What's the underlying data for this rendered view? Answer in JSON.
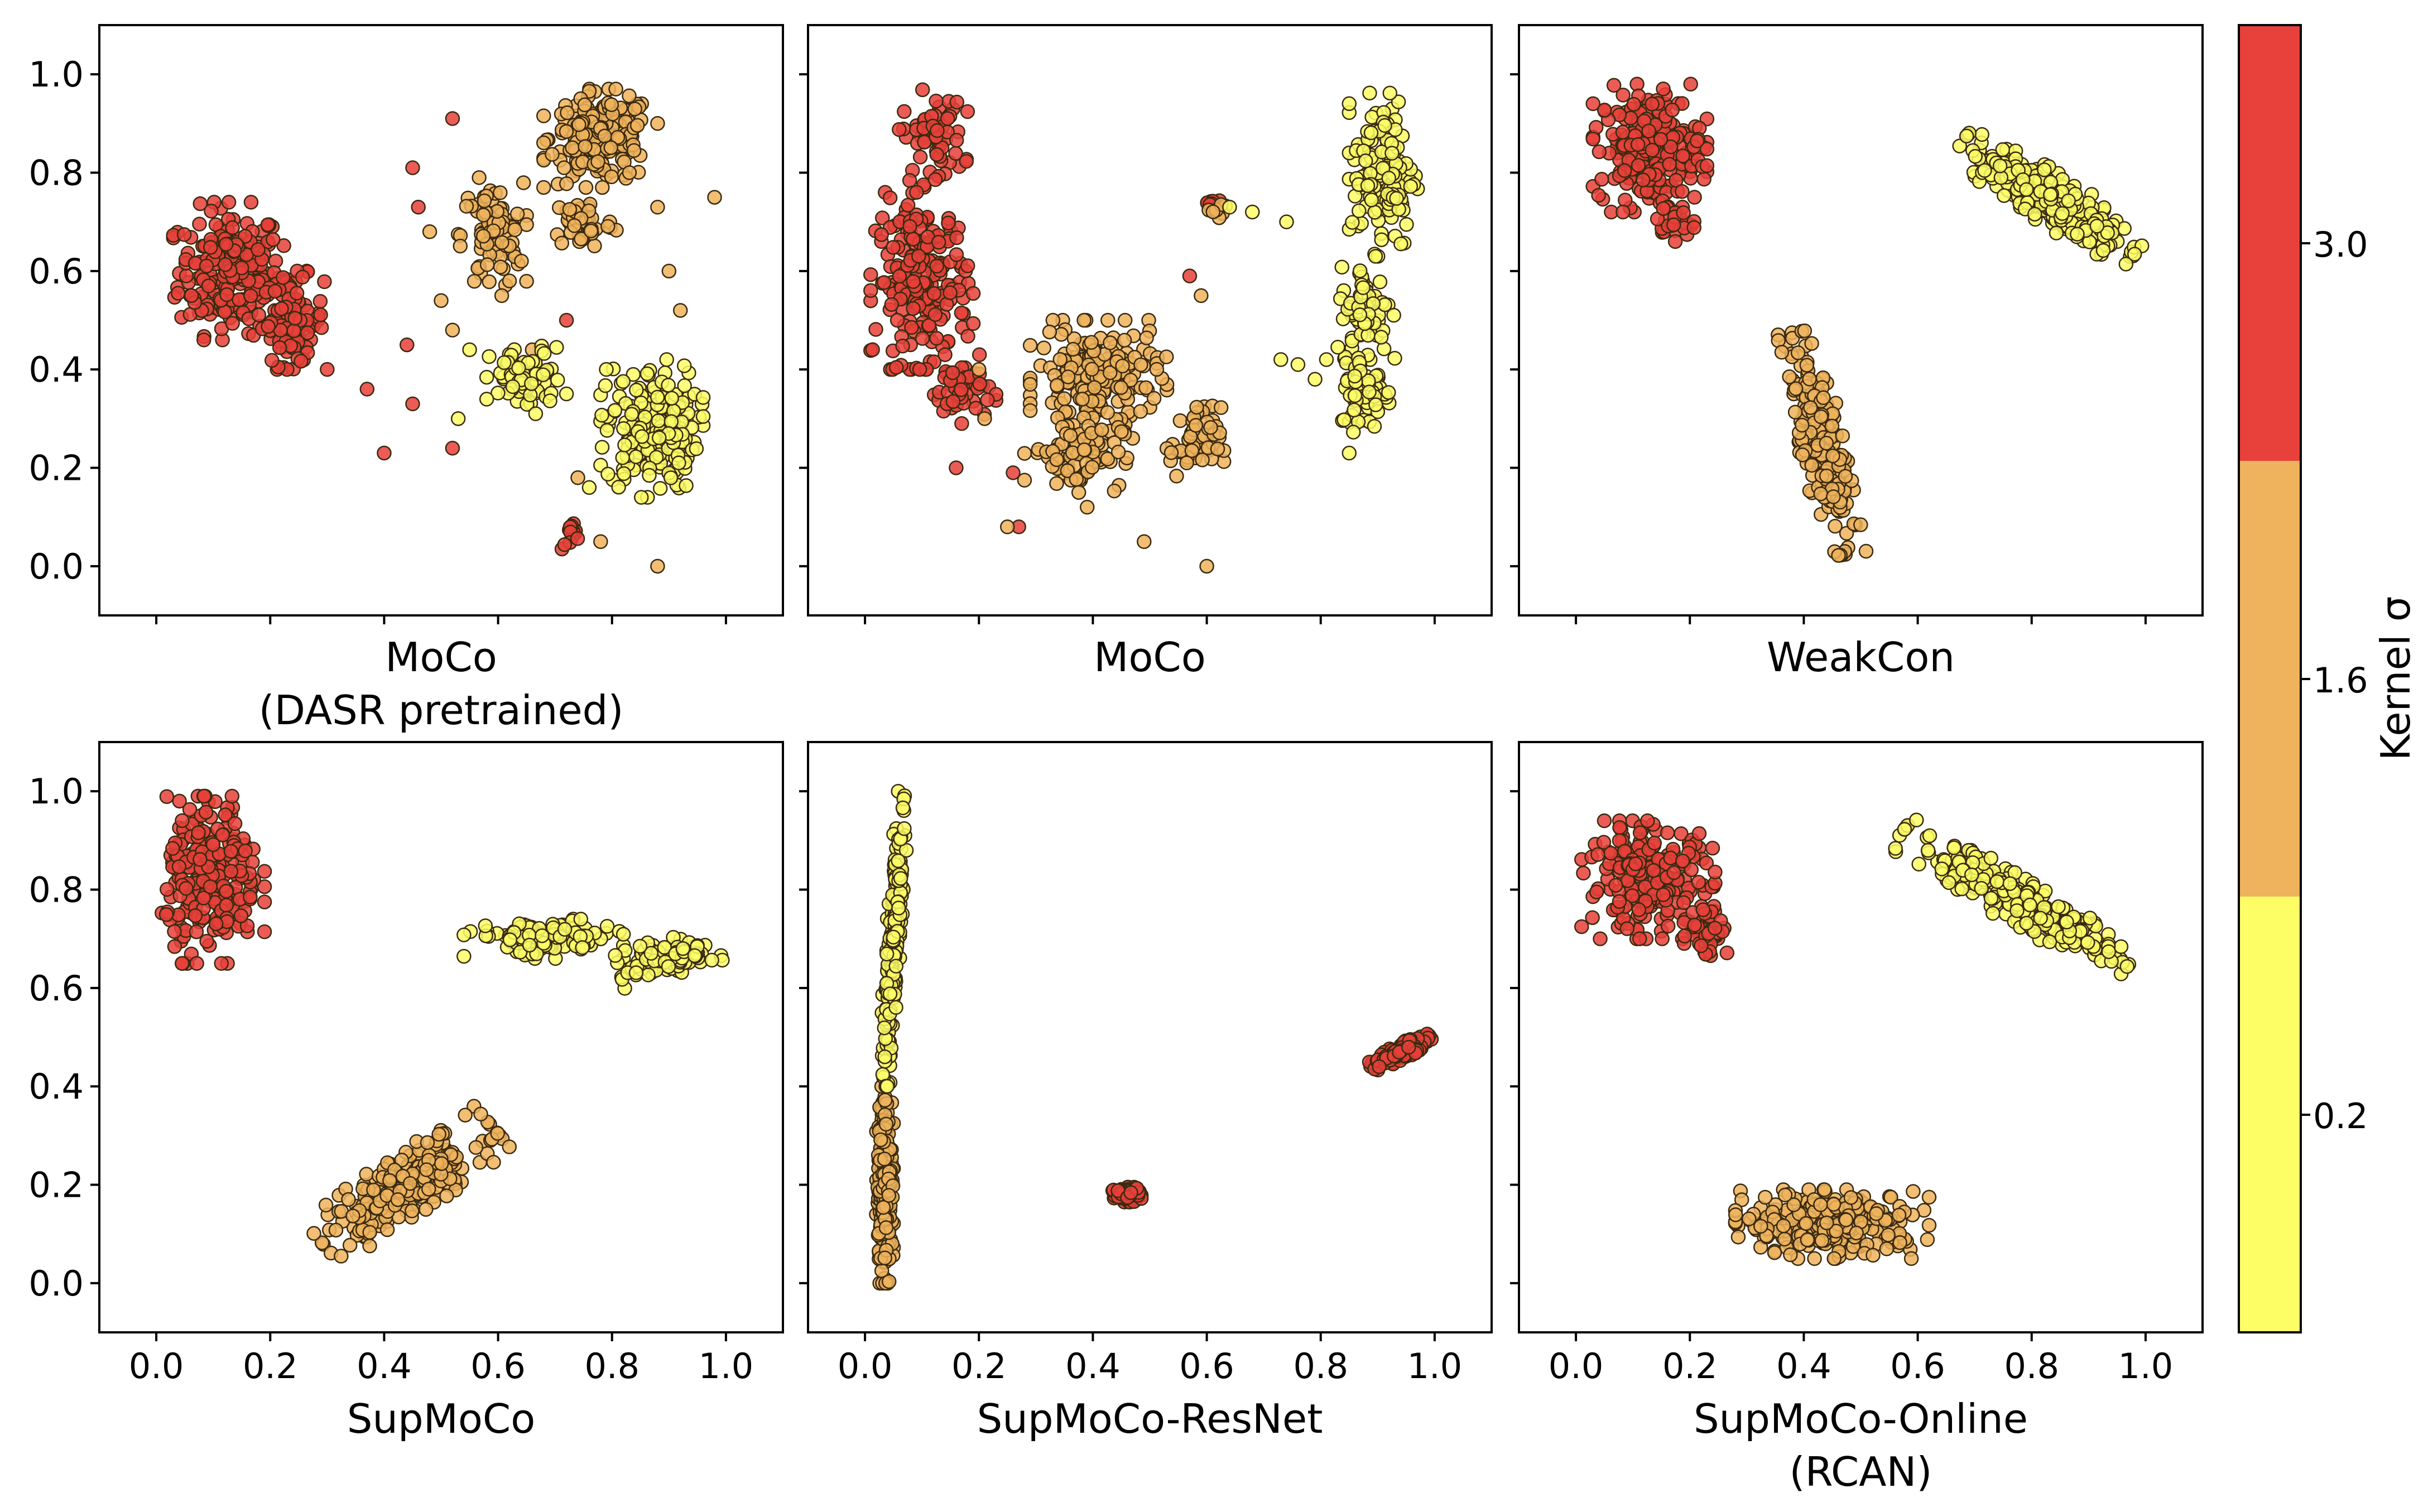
{
  "colors": {
    "red": "#e8403a",
    "orange": "#eeb35c",
    "yellow": "#fdfd66",
    "edge": "#3a2a10"
  },
  "colorbar": {
    "label": "Kernel σ",
    "ticks": [
      "0.2",
      "1.6",
      "3.0"
    ],
    "segments": [
      {
        "class": "0.2",
        "color": "#fdfd66"
      },
      {
        "class": "1.6",
        "color": "#eeb35c"
      },
      {
        "class": "3.0",
        "color": "#e8403a"
      }
    ]
  },
  "chart_data": [
    {
      "type": "scatter",
      "title": [
        "MoCo",
        "(DASR pretrained)"
      ],
      "xlim": [
        -0.1,
        1.1
      ],
      "ylim": [
        -0.1,
        1.1
      ],
      "xticks": [],
      "yticks": [
        "0.0",
        "0.2",
        "0.4",
        "0.6",
        "0.8",
        "1.0"
      ],
      "series": [
        {
          "class": "3.0",
          "clusters": [
            {
              "cx": 0.13,
              "cy": 0.6,
              "rx": 0.1,
              "ry": 0.14,
              "n": 230,
              "rot": 0
            },
            {
              "cx": 0.24,
              "cy": 0.5,
              "rx": 0.06,
              "ry": 0.1,
              "n": 90,
              "rot": 0
            },
            {
              "cx": 0.73,
              "cy": 0.06,
              "rx": 0.02,
              "ry": 0.03,
              "n": 14,
              "rot": 0
            }
          ],
          "points": [
            [
              0.37,
              0.36
            ],
            [
              0.4,
              0.23
            ],
            [
              0.45,
              0.33
            ],
            [
              0.52,
              0.24
            ],
            [
              0.44,
              0.45
            ],
            [
              0.46,
              0.73
            ],
            [
              0.52,
              0.91
            ],
            [
              0.72,
              0.5
            ],
            [
              0.45,
              0.81
            ]
          ]
        },
        {
          "class": "1.6",
          "clusters": [
            {
              "cx": 0.78,
              "cy": 0.87,
              "rx": 0.1,
              "ry": 0.1,
              "n": 190,
              "rot": 0
            },
            {
              "cx": 0.59,
              "cy": 0.67,
              "rx": 0.06,
              "ry": 0.12,
              "n": 80,
              "rot": 0
            },
            {
              "cx": 0.75,
              "cy": 0.7,
              "rx": 0.06,
              "ry": 0.06,
              "n": 50,
              "rot": 0
            }
          ],
          "points": [
            [
              0.5,
              0.54
            ],
            [
              0.62,
              0.58
            ],
            [
              0.66,
              0.44
            ],
            [
              0.9,
              0.6
            ],
            [
              0.92,
              0.52
            ],
            [
              0.98,
              0.75
            ],
            [
              0.88,
              0.73
            ],
            [
              0.74,
              0.18
            ],
            [
              0.78,
              0.05
            ],
            [
              0.88,
              0.0
            ],
            [
              0.52,
              0.48
            ],
            [
              0.48,
              0.68
            ]
          ]
        },
        {
          "class": "0.2",
          "clusters": [
            {
              "cx": 0.87,
              "cy": 0.28,
              "rx": 0.09,
              "ry": 0.14,
              "n": 190,
              "rot": 0
            },
            {
              "cx": 0.65,
              "cy": 0.38,
              "rx": 0.07,
              "ry": 0.07,
              "n": 80,
              "rot": 0
            }
          ],
          "points": [
            [
              0.76,
              0.16
            ],
            [
              0.55,
              0.44
            ],
            [
              0.79,
              0.4
            ],
            [
              0.53,
              0.3
            ]
          ]
        }
      ]
    },
    {
      "type": "scatter",
      "title": [
        "MoCo"
      ],
      "xlim": [
        -0.1,
        1.1
      ],
      "ylim": [
        -0.1,
        1.1
      ],
      "xticks": [],
      "yticks": [],
      "series": [
        {
          "class": "3.0",
          "clusters": [
            {
              "cx": 0.12,
              "cy": 0.87,
              "rx": 0.06,
              "ry": 0.1,
              "n": 60,
              "rot": 0
            },
            {
              "cx": 0.1,
              "cy": 0.58,
              "rx": 0.09,
              "ry": 0.18,
              "n": 210,
              "rot": 0
            },
            {
              "cx": 0.17,
              "cy": 0.36,
              "rx": 0.06,
              "ry": 0.07,
              "n": 50,
              "rot": 0
            },
            {
              "cx": 0.61,
              "cy": 0.74,
              "rx": 0.02,
              "ry": 0.02,
              "n": 10,
              "rot": 0
            }
          ],
          "points": [
            [
              0.16,
              0.2
            ],
            [
              0.27,
              0.08
            ],
            [
              0.26,
              0.19
            ],
            [
              0.57,
              0.59
            ]
          ]
        },
        {
          "class": "1.6",
          "clusters": [
            {
              "cx": 0.41,
              "cy": 0.38,
              "rx": 0.12,
              "ry": 0.12,
              "n": 180,
              "rot": 0
            },
            {
              "cx": 0.37,
              "cy": 0.23,
              "rx": 0.09,
              "ry": 0.08,
              "n": 80,
              "rot": 0
            },
            {
              "cx": 0.58,
              "cy": 0.25,
              "rx": 0.05,
              "ry": 0.08,
              "n": 50,
              "rot": 0
            },
            {
              "cx": 0.62,
              "cy": 0.72,
              "rx": 0.02,
              "ry": 0.02,
              "n": 8,
              "rot": 0
            }
          ],
          "points": [
            [
              0.25,
              0.08
            ],
            [
              0.39,
              0.12
            ],
            [
              0.49,
              0.05
            ],
            [
              0.6,
              0.0
            ],
            [
              0.2,
              0.4
            ],
            [
              0.21,
              0.3
            ],
            [
              0.59,
              0.55
            ]
          ]
        },
        {
          "class": "0.2",
          "clusters": [
            {
              "cx": 0.91,
              "cy": 0.8,
              "rx": 0.06,
              "ry": 0.17,
              "n": 150,
              "rot": 0
            },
            {
              "cx": 0.88,
              "cy": 0.52,
              "rx": 0.05,
              "ry": 0.1,
              "n": 70,
              "rot": 0
            },
            {
              "cx": 0.88,
              "cy": 0.36,
              "rx": 0.05,
              "ry": 0.09,
              "n": 60,
              "rot": 0
            }
          ],
          "points": [
            [
              0.68,
              0.72
            ],
            [
              0.74,
              0.7
            ],
            [
              0.73,
              0.42
            ],
            [
              0.76,
              0.41
            ],
            [
              0.79,
              0.38
            ],
            [
              0.81,
              0.42
            ],
            [
              0.85,
              0.23
            ],
            [
              0.64,
              0.73
            ]
          ]
        }
      ]
    },
    {
      "type": "scatter",
      "title": [
        "WeakCon"
      ],
      "xlim": [
        -0.1,
        1.1
      ],
      "ylim": [
        -0.1,
        1.1
      ],
      "xticks": [],
      "yticks": [],
      "series": [
        {
          "class": "3.0",
          "clusters": [
            {
              "cx": 0.13,
              "cy": 0.85,
              "rx": 0.1,
              "ry": 0.13,
              "n": 230,
              "rot": 0
            },
            {
              "cx": 0.17,
              "cy": 0.7,
              "rx": 0.04,
              "ry": 0.04,
              "n": 25,
              "rot": 0
            }
          ],
          "points": []
        },
        {
          "class": "1.6",
          "clusters": [
            {
              "cx": 0.43,
              "cy": 0.25,
              "rx": 0.04,
              "ry": 0.23,
              "n": 260,
              "rot": 10
            }
          ],
          "points": []
        },
        {
          "class": "0.2",
          "clusters": [
            {
              "cx": 0.83,
              "cy": 0.75,
              "rx": 0.19,
              "ry": 0.05,
              "n": 270,
              "rot": -37
            }
          ],
          "points": []
        }
      ]
    },
    {
      "type": "scatter",
      "title": [
        "SupMoCo"
      ],
      "xlim": [
        -0.1,
        1.1
      ],
      "ylim": [
        -0.1,
        1.1
      ],
      "xticks": [
        "0.0",
        "0.2",
        "0.4",
        "0.6",
        "0.8",
        "1.0"
      ],
      "yticks": [
        "0.0",
        "0.2",
        "0.4",
        "0.6",
        "0.8",
        "1.0"
      ],
      "series": [
        {
          "class": "3.0",
          "clusters": [
            {
              "cx": 0.1,
              "cy": 0.82,
              "rx": 0.09,
              "ry": 0.17,
              "n": 250,
              "rot": 0
            }
          ],
          "points": []
        },
        {
          "class": "1.6",
          "clusters": [
            {
              "cx": 0.44,
              "cy": 0.2,
              "rx": 0.19,
              "ry": 0.06,
              "n": 260,
              "rot": 37
            }
          ],
          "points": []
        },
        {
          "class": "0.2",
          "clusters": [
            {
              "cx": 0.68,
              "cy": 0.7,
              "rx": 0.14,
              "ry": 0.04,
              "n": 120,
              "rot": 0
            },
            {
              "cx": 0.9,
              "cy": 0.66,
              "rx": 0.09,
              "ry": 0.04,
              "n": 110,
              "rot": 14
            }
          ],
          "points": []
        }
      ]
    },
    {
      "type": "scatter",
      "title": [
        "SupMoCo-ResNet"
      ],
      "xlim": [
        -0.1,
        1.1
      ],
      "ylim": [
        -0.1,
        1.1
      ],
      "xticks": [
        "0.0",
        "0.2",
        "0.4",
        "0.6",
        "0.8",
        "1.0"
      ],
      "yticks": [],
      "series": [
        {
          "class": "3.0",
          "clusters": [
            {
              "cx": 0.46,
              "cy": 0.18,
              "rx": 0.025,
              "ry": 0.015,
              "n": 120,
              "rot": 0
            },
            {
              "cx": 0.94,
              "cy": 0.47,
              "rx": 0.06,
              "ry": 0.015,
              "n": 150,
              "rot": 30
            }
          ],
          "points": []
        },
        {
          "class": "1.6",
          "clusters": [
            {
              "cx": 0.035,
              "cy": 0.2,
              "rx": 0.015,
              "ry": 0.2,
              "n": 270,
              "rot": 0
            }
          ],
          "points": []
        },
        {
          "class": "0.2",
          "clusters": [
            {
              "cx": 0.05,
              "cy": 0.7,
              "rx": 0.013,
              "ry": 0.3,
              "n": 200,
              "rot": -3
            }
          ],
          "points": []
        }
      ]
    },
    {
      "type": "scatter",
      "title": [
        "SupMoCo-Online",
        "(RCAN)"
      ],
      "xlim": [
        -0.1,
        1.1
      ],
      "ylim": [
        -0.1,
        1.1
      ],
      "xticks": [
        "0.0",
        "0.2",
        "0.4",
        "0.6",
        "0.8",
        "1.0"
      ],
      "yticks": [],
      "series": [
        {
          "class": "3.0",
          "clusters": [
            {
              "cx": 0.13,
              "cy": 0.82,
              "rx": 0.12,
              "ry": 0.12,
              "n": 230,
              "rot": 0
            },
            {
              "cx": 0.23,
              "cy": 0.72,
              "rx": 0.04,
              "ry": 0.06,
              "n": 40,
              "rot": 0
            }
          ],
          "points": []
        },
        {
          "class": "1.6",
          "clusters": [
            {
              "cx": 0.45,
              "cy": 0.12,
              "rx": 0.17,
              "ry": 0.07,
              "n": 280,
              "rot": 0
            }
          ],
          "points": []
        },
        {
          "class": "0.2",
          "clusters": [
            {
              "cx": 0.77,
              "cy": 0.78,
              "rx": 0.24,
              "ry": 0.045,
              "n": 280,
              "rot": -35
            }
          ],
          "points": []
        }
      ]
    }
  ]
}
